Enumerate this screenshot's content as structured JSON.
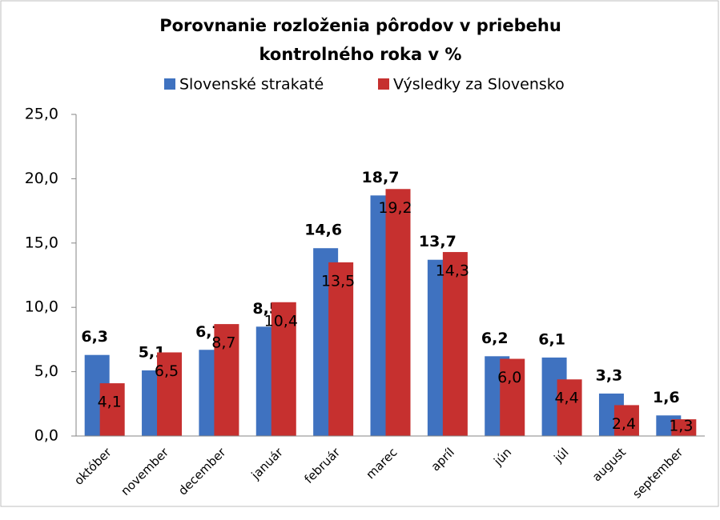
{
  "chart_data": {
    "type": "bar",
    "title": [
      "Porovnanie rozloženia pôrodov v priebehu",
      "kontrolného roka v %"
    ],
    "categories": [
      "október",
      "november",
      "december",
      "január",
      "február",
      "marec",
      "apríl",
      "jún",
      "júl",
      "august",
      "september"
    ],
    "series": [
      {
        "name": "Slovenské strakaté",
        "color": "#3f72c0",
        "values": [
          6.3,
          5.1,
          6.7,
          8.5,
          14.6,
          18.7,
          13.7,
          6.2,
          6.1,
          3.3,
          1.6
        ],
        "value_labels": [
          "6,3",
          "5,1",
          "6,7",
          "8,5",
          "14,6",
          "18,7",
          "13,7",
          "6,2",
          "6,1",
          "3,3",
          "1,6"
        ]
      },
      {
        "name": "Výsledky za Slovensko",
        "color": "#c6302f",
        "values": [
          4.1,
          6.5,
          8.7,
          10.4,
          13.5,
          19.2,
          14.3,
          6.0,
          4.4,
          2.4,
          1.3
        ],
        "value_labels": [
          "4,1",
          "6,5",
          "8,7",
          "10,4",
          "13,5",
          "19,2",
          "14,3",
          "6,0",
          "4,4",
          "2,4",
          "1,3"
        ]
      }
    ],
    "ylim": [
      0,
      25
    ],
    "yticks": [
      {
        "value": 0,
        "label": "0,0"
      },
      {
        "value": 5,
        "label": "5,0"
      },
      {
        "value": 10,
        "label": "10,0"
      },
      {
        "value": 15,
        "label": "15,0"
      },
      {
        "value": 20,
        "label": "20,0"
      },
      {
        "value": 25,
        "label": "25,0"
      }
    ],
    "grid": false,
    "legend": "top"
  }
}
